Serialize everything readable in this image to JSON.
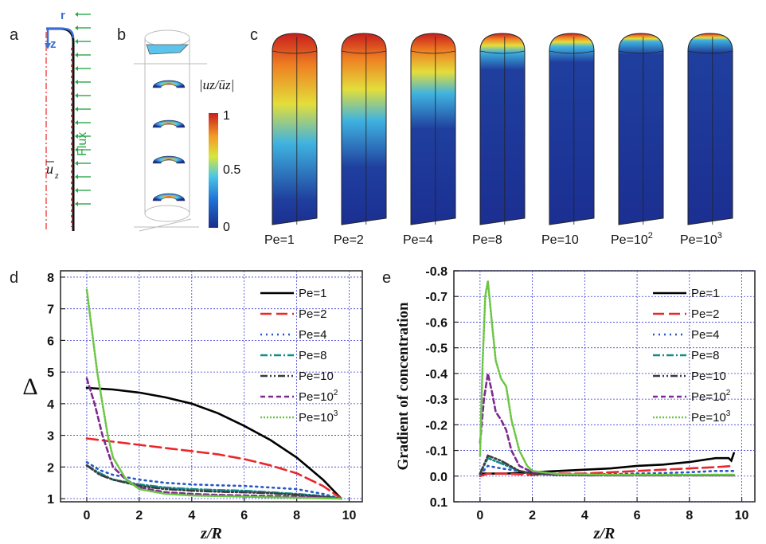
{
  "panels": {
    "a": {
      "letter": "a",
      "labels": {
        "r": "r",
        "z": "z",
        "flux": "Flux",
        "mean_velocity": "u",
        "mean_velocity_sub": "z"
      }
    },
    "b": {
      "letter": "b",
      "colorbar": {
        "title": "|uz/ūz|",
        "ticks": [
          "1",
          "0.5",
          "0"
        ]
      }
    },
    "c": {
      "letter": "c",
      "columns": [
        "Pe=1",
        "Pe=2",
        "Pe=4",
        "Pe=8",
        "Pe=10",
        "Pe=10",
        "Pe=10"
      ],
      "exponents": [
        "",
        "",
        "",
        "",
        "",
        "2",
        "3"
      ],
      "hot_fraction": [
        0.82,
        0.65,
        0.45,
        0.14,
        0.1,
        0.06,
        0.05
      ]
    },
    "d": {
      "letter": "d"
    },
    "e": {
      "letter": "e"
    }
  },
  "colors": {
    "Pe=1": "#000000",
    "Pe=2": "#e8282b",
    "Pe=4": "#2a56c6",
    "Pe=8": "#118b8b",
    "Pe=10": "#3b3b3b",
    "Pe=10^2": "#7d2a8f",
    "Pe=10^3": "#6cc644",
    "grid": "#3a3ad6",
    "flux": "#2aa84a"
  },
  "chart_data": [
    {
      "type": "line",
      "panel": "d",
      "xlabel": "z/R",
      "ylabel": "Δ",
      "xlim": [
        -1,
        10.5
      ],
      "ylim": [
        0.9,
        8.2
      ],
      "xticks": [
        "0",
        "2",
        "4",
        "6",
        "8",
        "10"
      ],
      "yticks": [
        "1",
        "2",
        "3",
        "4",
        "5",
        "6",
        "7",
        "8"
      ],
      "grid": true,
      "legend": "top-right",
      "series": [
        {
          "name": "Pe=1",
          "x": [
            0,
            1,
            2,
            3,
            4,
            5,
            6,
            7,
            8,
            9,
            9.7
          ],
          "y": [
            4.5,
            4.45,
            4.35,
            4.2,
            4.0,
            3.7,
            3.3,
            2.85,
            2.3,
            1.6,
            1.0
          ]
        },
        {
          "name": "Pe=2",
          "x": [
            0,
            1,
            2,
            3,
            4,
            5,
            6,
            7,
            8,
            9,
            9.7
          ],
          "y": [
            2.9,
            2.8,
            2.7,
            2.6,
            2.5,
            2.4,
            2.25,
            2.05,
            1.8,
            1.4,
            1.0
          ]
        },
        {
          "name": "Pe=4",
          "x": [
            0,
            0.5,
            1,
            2,
            3,
            4,
            5,
            6,
            7,
            8,
            9,
            9.7
          ],
          "y": [
            2.15,
            1.9,
            1.75,
            1.6,
            1.5,
            1.45,
            1.42,
            1.4,
            1.35,
            1.3,
            1.15,
            1.0
          ]
        },
        {
          "name": "Pe=8",
          "x": [
            0,
            0.5,
            1,
            2,
            3,
            4,
            5,
            6,
            7,
            8,
            9,
            9.7
          ],
          "y": [
            2.05,
            1.8,
            1.6,
            1.45,
            1.35,
            1.3,
            1.27,
            1.25,
            1.2,
            1.15,
            1.08,
            1.0
          ]
        },
        {
          "name": "Pe=10",
          "x": [
            0,
            0.5,
            1,
            2,
            3,
            4,
            5,
            6,
            7,
            8,
            9,
            9.7
          ],
          "y": [
            2.05,
            1.75,
            1.6,
            1.4,
            1.3,
            1.25,
            1.22,
            1.2,
            1.17,
            1.12,
            1.06,
            1.0
          ]
        },
        {
          "name": "Pe=10^2",
          "x": [
            0,
            0.3,
            0.6,
            1,
            1.5,
            2,
            3,
            4,
            5,
            6,
            7,
            8,
            9,
            9.7
          ],
          "y": [
            4.8,
            4.0,
            3.0,
            2.0,
            1.6,
            1.35,
            1.2,
            1.15,
            1.12,
            1.1,
            1.08,
            1.06,
            1.03,
            1.0
          ]
        },
        {
          "name": "Pe=10^3",
          "x": [
            0,
            0.2,
            0.4,
            0.6,
            0.8,
            1,
            1.5,
            2,
            3,
            4,
            5,
            6,
            7,
            8,
            9,
            9.7
          ],
          "y": [
            7.6,
            6.3,
            5.0,
            4.0,
            3.0,
            2.3,
            1.6,
            1.3,
            1.15,
            1.1,
            1.08,
            1.06,
            1.04,
            1.03,
            1.01,
            1.0
          ]
        }
      ]
    },
    {
      "type": "line",
      "panel": "e",
      "xlabel": "z/R",
      "ylabel": "Gradient of concentration",
      "xlim": [
        -1,
        10.5
      ],
      "ylim": [
        0.1,
        -0.8
      ],
      "xticks": [
        "0",
        "2",
        "4",
        "6",
        "8",
        "10"
      ],
      "yticks": [
        "-0.8",
        "-0.7",
        "-0.6",
        "-0.5",
        "-0.4",
        "-0.3",
        "-0.2",
        "-0.1",
        "0.0",
        "0.1"
      ],
      "grid": true,
      "legend": "top-right",
      "series": [
        {
          "name": "Pe=1",
          "x": [
            0,
            0.3,
            1,
            2,
            3,
            4,
            5,
            6,
            7,
            8,
            9,
            9.5,
            9.6,
            9.7
          ],
          "y": [
            -0.01,
            -0.01,
            -0.01,
            -0.015,
            -0.02,
            -0.025,
            -0.03,
            -0.04,
            -0.045,
            -0.055,
            -0.07,
            -0.07,
            -0.06,
            -0.09
          ]
        },
        {
          "name": "Pe=2",
          "x": [
            0,
            0.3,
            1,
            2,
            3,
            4,
            5,
            6,
            7,
            8,
            9,
            9.7
          ],
          "y": [
            0.0,
            -0.01,
            -0.01,
            -0.005,
            -0.01,
            -0.01,
            -0.015,
            -0.02,
            -0.025,
            -0.03,
            -0.035,
            -0.04
          ]
        },
        {
          "name": "Pe=4",
          "x": [
            0,
            0.3,
            0.8,
            1.5,
            2,
            3,
            4,
            5,
            6,
            7,
            8,
            9,
            9.7
          ],
          "y": [
            -0.005,
            -0.04,
            -0.03,
            -0.02,
            -0.01,
            -0.005,
            -0.005,
            -0.008,
            -0.01,
            -0.012,
            -0.015,
            -0.02,
            -0.02
          ]
        },
        {
          "name": "Pe=8",
          "x": [
            0,
            0.3,
            0.8,
            1.5,
            2,
            3,
            4,
            5,
            6,
            7,
            8,
            9,
            9.7
          ],
          "y": [
            -0.01,
            -0.07,
            -0.05,
            -0.02,
            -0.01,
            -0.005,
            -0.005,
            -0.005,
            -0.005,
            -0.005,
            -0.005,
            -0.005,
            -0.005
          ]
        },
        {
          "name": "Pe=10",
          "x": [
            0,
            0.3,
            0.8,
            1.5,
            2,
            3,
            4,
            5,
            6,
            7,
            8,
            9,
            9.7
          ],
          "y": [
            -0.01,
            -0.08,
            -0.06,
            -0.02,
            -0.01,
            -0.005,
            -0.003,
            -0.003,
            -0.003,
            -0.003,
            -0.003,
            -0.003,
            -0.003
          ]
        },
        {
          "name": "Pe=10^2",
          "x": [
            0,
            0.15,
            0.3,
            0.45,
            0.6,
            0.8,
            1.0,
            1.2,
            1.5,
            2,
            3,
            5,
            7,
            9,
            9.7
          ],
          "y": [
            -0.13,
            -0.3,
            -0.4,
            -0.33,
            -0.25,
            -0.22,
            -0.18,
            -0.1,
            -0.04,
            -0.015,
            -0.005,
            -0.003,
            -0.003,
            -0.003,
            -0.003
          ]
        },
        {
          "name": "Pe=10^3",
          "x": [
            0,
            0.1,
            0.2,
            0.3,
            0.45,
            0.6,
            0.8,
            1.0,
            1.2,
            1.5,
            1.8,
            2,
            3,
            5,
            7,
            9,
            9.7
          ],
          "y": [
            -0.08,
            -0.45,
            -0.7,
            -0.76,
            -0.6,
            -0.45,
            -0.38,
            -0.35,
            -0.22,
            -0.1,
            -0.04,
            -0.02,
            -0.008,
            -0.005,
            -0.005,
            -0.005,
            -0.005
          ]
        }
      ]
    }
  ]
}
